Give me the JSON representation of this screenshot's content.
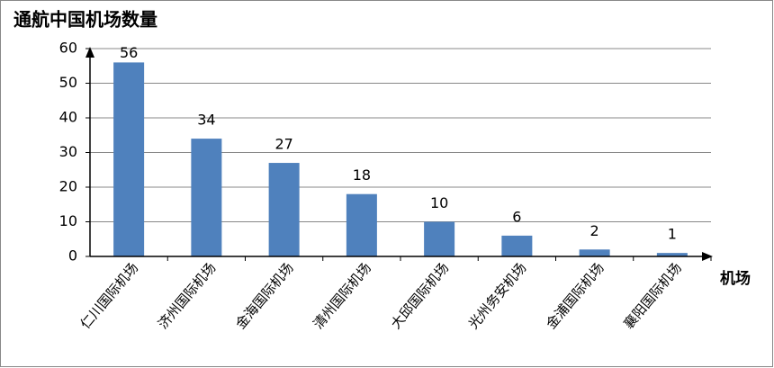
{
  "chart_data": {
    "type": "bar",
    "title": "通航中国机场数量",
    "x_label": "机场",
    "categories": [
      "仁川国际机场",
      "济州国际机场",
      "金海国际机场",
      "清州国际机场",
      "大邱国际机场",
      "光州务安机场",
      "金浦国际机场",
      "襄阳国际机场"
    ],
    "values": [
      56,
      34,
      27,
      18,
      10,
      6,
      2,
      1
    ],
    "color": "#4f81bd",
    "ylim": [
      0,
      60
    ],
    "yticks": [
      0,
      10,
      20,
      30,
      40,
      50,
      60
    ],
    "grid": true
  }
}
